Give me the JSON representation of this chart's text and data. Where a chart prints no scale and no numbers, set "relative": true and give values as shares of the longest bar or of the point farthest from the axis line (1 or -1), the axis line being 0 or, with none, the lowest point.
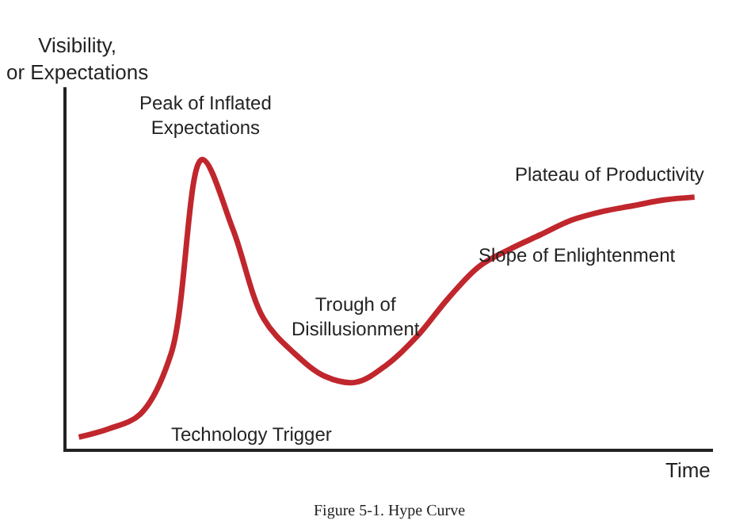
{
  "chart_data": {
    "type": "line",
    "relative": true,
    "xlabel": "Time",
    "ylabel": "Visibility,\nor Expectations",
    "categories": [
      null,
      null,
      null,
      null,
      null,
      null,
      null,
      null,
      null,
      null,
      null,
      null,
      null,
      null,
      null,
      null,
      null,
      null,
      null,
      null,
      null
    ],
    "series": [
      {
        "color": "#c0272d",
        "values": [
          0.04,
          0.07,
          0.12,
          0.33,
          1.0,
          0.76,
          0.45,
          0.33,
          0.25,
          0.23,
          0.29,
          0.39,
          0.52,
          0.63,
          0.69,
          0.74,
          0.79,
          0.82,
          0.84,
          0.86,
          0.87
        ]
      }
    ],
    "annotations": [
      "Peak of Inflated\nExpectations",
      "Trough of\nDisillusionment",
      "Slope of Enlightenment",
      "Plateau of Productivity",
      "Technology Trigger",
      "Figure 5-1. Hype Curve"
    ],
    "legend": false
  }
}
